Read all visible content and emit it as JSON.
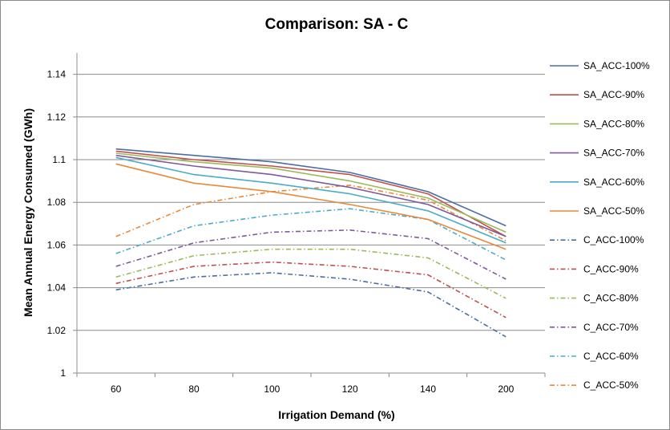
{
  "chart_data": {
    "type": "line",
    "title": "Comparison: SA - C",
    "xlabel": "Irrigation Demand (%)",
    "ylabel": "Mean Annual Energy Consumed (GWh)",
    "categories": [
      "60",
      "80",
      "100",
      "120",
      "140",
      "200"
    ],
    "yticks": [
      "1",
      "1.02",
      "1.04",
      "1.06",
      "1.08",
      "1.1",
      "1.12",
      "1.14"
    ],
    "ylim": [
      1,
      1.15
    ],
    "grid": "horizontal",
    "legend_position": "right",
    "series": [
      {
        "name": "SA_ACC-100%",
        "color": "#4a6fa5",
        "dash": "solid",
        "values": [
          1.105,
          1.102,
          1.099,
          1.094,
          1.085,
          1.069
        ]
      },
      {
        "name": "SA_ACC-90%",
        "color": "#c0504d",
        "dash": "solid",
        "values": [
          1.104,
          1.1,
          1.097,
          1.093,
          1.084,
          1.064
        ]
      },
      {
        "name": "SA_ACC-80%",
        "color": "#9bbb59",
        "dash": "solid",
        "values": [
          1.103,
          1.099,
          1.096,
          1.09,
          1.082,
          1.066
        ]
      },
      {
        "name": "SA_ACC-70%",
        "color": "#7f5a9a",
        "dash": "solid",
        "values": [
          1.102,
          1.097,
          1.093,
          1.087,
          1.079,
          1.064
        ]
      },
      {
        "name": "SA_ACC-60%",
        "color": "#4bacc6",
        "dash": "solid",
        "values": [
          1.101,
          1.093,
          1.089,
          1.084,
          1.076,
          1.061
        ]
      },
      {
        "name": "SA_ACC-50%",
        "color": "#e8893b",
        "dash": "solid",
        "values": [
          1.098,
          1.089,
          1.085,
          1.079,
          1.072,
          1.058
        ]
      },
      {
        "name": "C_ACC-100%",
        "color": "#4a6fa5",
        "dash": "dashdot",
        "values": [
          1.039,
          1.045,
          1.047,
          1.044,
          1.038,
          1.017
        ]
      },
      {
        "name": "C_ACC-90%",
        "color": "#c0504d",
        "dash": "dashdot",
        "values": [
          1.042,
          1.05,
          1.052,
          1.05,
          1.046,
          1.026
        ]
      },
      {
        "name": "C_ACC-80%",
        "color": "#9bbb59",
        "dash": "dashdot",
        "values": [
          1.045,
          1.055,
          1.058,
          1.058,
          1.054,
          1.035
        ]
      },
      {
        "name": "C_ACC-70%",
        "color": "#7f5a9a",
        "dash": "dashdot",
        "values": [
          1.05,
          1.061,
          1.066,
          1.067,
          1.063,
          1.044
        ]
      },
      {
        "name": "C_ACC-60%",
        "color": "#4bacc6",
        "dash": "dashdot",
        "values": [
          1.056,
          1.069,
          1.074,
          1.077,
          1.072,
          1.053
        ]
      },
      {
        "name": "C_ACC-50%",
        "color": "#e8893b",
        "dash": "dashdot",
        "values": [
          1.064,
          1.079,
          1.085,
          1.088,
          1.081,
          1.062
        ]
      }
    ]
  }
}
